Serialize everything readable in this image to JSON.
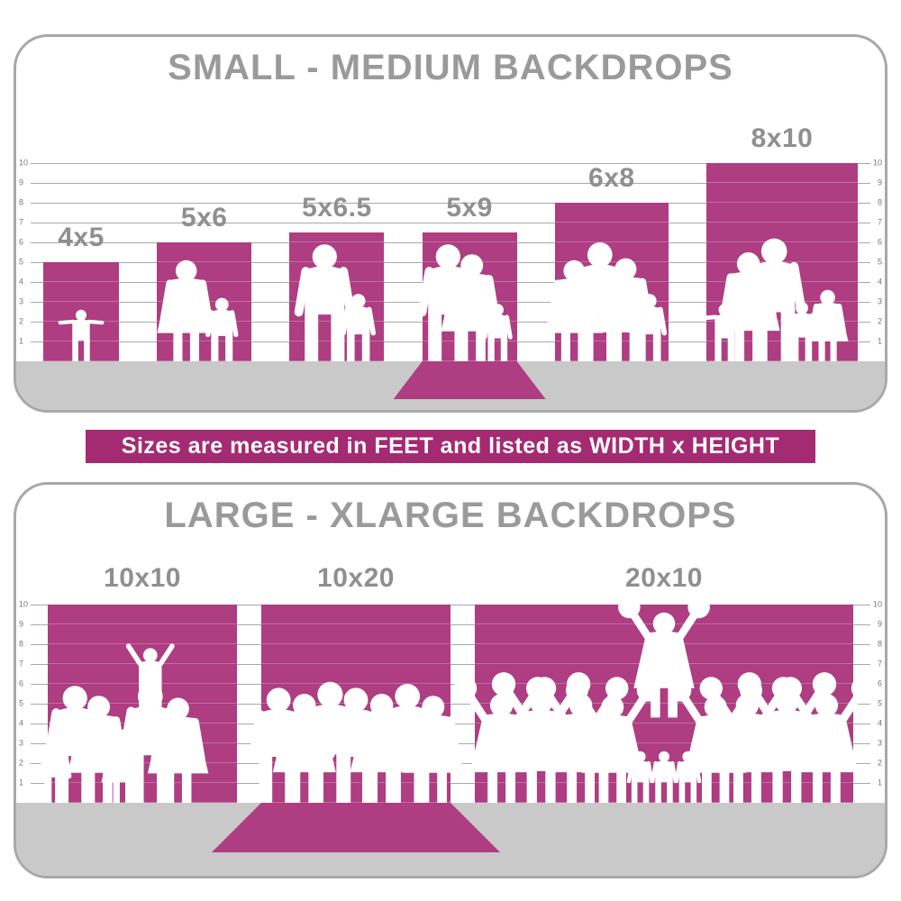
{
  "colors": {
    "backdrop_magenta": "#ae3d82",
    "banner_magenta": "#a42a72",
    "title_gray": "#9a9a9a",
    "label_gray": "#8f8f8f",
    "floor_gray": "#c9c9c9",
    "grid_gray": "#a8a8a8",
    "tick_gray": "#777777",
    "panel_border_gray": "#a8a8a8",
    "silhouette_white": "#ffffff"
  },
  "banner": {
    "text": "Sizes are measured in FEET and listed as WIDTH x HEIGHT"
  },
  "chart_data": [
    {
      "type": "bar",
      "title": "SMALL - MEDIUM BACKDROPS",
      "unit": "feet",
      "ylim": [
        0,
        10
      ],
      "yticks": [
        1,
        2,
        3,
        4,
        5,
        6,
        7,
        8,
        9,
        10
      ],
      "tick_sides": [
        "left",
        "right"
      ],
      "grid": true,
      "categories": [
        "4x5",
        "5x6",
        "5x6.5",
        "5x9",
        "6x8",
        "8x10"
      ],
      "width_ft": [
        4,
        5,
        5,
        5,
        6,
        8
      ],
      "height_ft": [
        5,
        6,
        6.5,
        9,
        8,
        10
      ],
      "wall_height_ft": [
        5,
        6,
        6.5,
        6.5,
        8,
        10
      ],
      "floor_sweep": [
        false,
        false,
        false,
        true,
        false,
        false
      ],
      "figures": [
        [
          [
            "toddler",
            2.6,
            0
          ]
        ],
        [
          [
            "woman",
            5.1,
            -0.9
          ],
          [
            "boy",
            3.2,
            0.9
          ]
        ],
        [
          [
            "man",
            5.9,
            -0.6
          ],
          [
            "boy",
            3.4,
            1.1
          ]
        ],
        [
          [
            "man",
            5.9,
            -1.1
          ],
          [
            "woman",
            5.4,
            0.1
          ],
          [
            "boy",
            2.9,
            1.4
          ]
        ],
        [
          [
            "woman",
            5.1,
            -1.9
          ],
          [
            "man",
            6.0,
            -0.6
          ],
          [
            "woman",
            5.2,
            0.7
          ],
          [
            "boy",
            3.4,
            1.9
          ]
        ],
        [
          [
            "toddler",
            2.9,
            -2.9
          ],
          [
            "woman",
            5.5,
            -1.7
          ],
          [
            "man",
            6.2,
            -0.4
          ],
          [
            "boy",
            3.0,
            1.0
          ],
          [
            "girl",
            3.6,
            2.3
          ]
        ]
      ]
    },
    {
      "type": "bar",
      "title": "LARGE - XLARGE BACKDROPS",
      "unit": "feet",
      "ylim": [
        0,
        10
      ],
      "yticks": [
        1,
        2,
        3,
        4,
        5,
        6,
        7,
        8,
        9,
        10
      ],
      "tick_sides": [
        "left",
        "right"
      ],
      "grid": true,
      "categories": [
        "10x10",
        "10x20",
        "20x10"
      ],
      "width_ft": [
        10,
        10,
        20
      ],
      "height_ft": [
        10,
        20,
        10
      ],
      "wall_height_ft": [
        10,
        10,
        10
      ],
      "floor_sweep": [
        false,
        true,
        false
      ],
      "figures": [
        [
          [
            "boy",
            3.2,
            -4.4
          ],
          [
            "man",
            5.9,
            -3.4
          ],
          [
            "woman",
            5.4,
            -2.2
          ],
          [
            "girl",
            3.7,
            -1.0
          ],
          [
            "man",
            6.0,
            0.4
          ],
          [
            "child-arms-up",
            3.4,
            0.4,
            4.4
          ],
          [
            "woman",
            5.3,
            1.8
          ]
        ],
        [
          [
            "man",
            5.8,
            -3.9
          ],
          [
            "woman",
            5.5,
            -2.6
          ],
          [
            "man",
            6.1,
            -1.3
          ],
          [
            "man",
            5.8,
            0
          ],
          [
            "woman",
            5.5,
            1.3
          ],
          [
            "man",
            6.0,
            2.6
          ],
          [
            "woman",
            5.4,
            3.9
          ]
        ],
        [
          [
            "cheerleader",
            5.5,
            -8.2
          ],
          [
            "cheerleader",
            5.7,
            -6.2
          ],
          [
            "cheerleader",
            5.5,
            -4.2
          ],
          [
            "cheerleader",
            5.4,
            -2.6
          ],
          [
            "boy",
            2.6,
            -1.2
          ],
          [
            "boy",
            2.6,
            0
          ],
          [
            "boy",
            2.6,
            1.2
          ],
          [
            "cheerleader",
            5.3,
            0,
            4.3
          ],
          [
            "cheerleader",
            5.4,
            2.6
          ],
          [
            "cheerleader",
            5.5,
            4.2
          ],
          [
            "cheerleader",
            5.7,
            6.2
          ],
          [
            "cheerleader",
            5.5,
            8.2
          ]
        ]
      ]
    }
  ]
}
